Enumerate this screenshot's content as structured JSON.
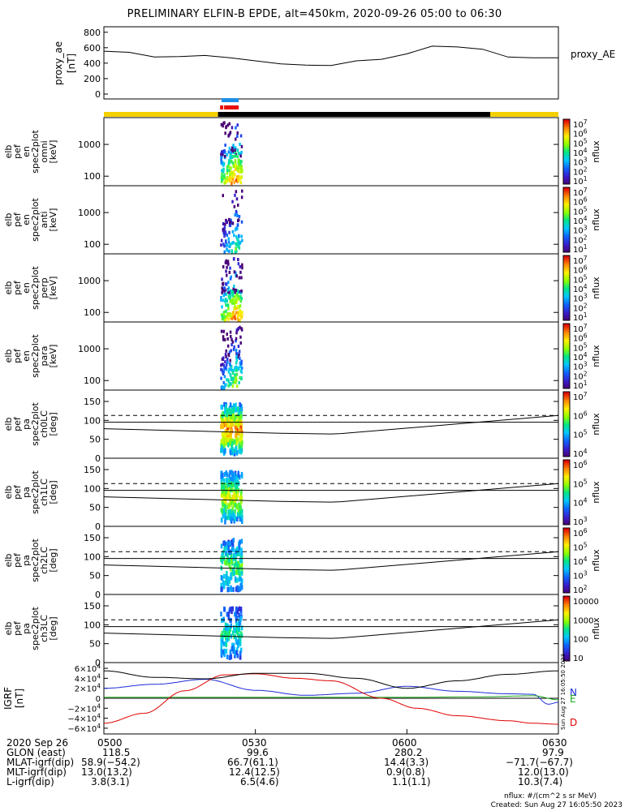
{
  "title": "PRELIMINARY ELFIN-B EPDE, alt=450km, 2020-09-26 05:00 to 06:30",
  "colors": {
    "state_yellow": "#f5d000",
    "state_black": "#000000",
    "bar_blue": "#1e8fe6",
    "bar_red": "#e8100a",
    "comp_N": "#1a2bd6",
    "comp_E": "#1aaa1a",
    "comp_D": "#e00000"
  },
  "chart_data": [
    {
      "type": "line",
      "id": "proxy_ae",
      "ylabel": "proxy_ae\n[nT]",
      "legend": "proxy_AE",
      "yticks": [
        "800",
        "600",
        "400",
        "200",
        "0"
      ],
      "ylim": [
        0,
        850
      ],
      "xlim": [
        0,
        90
      ],
      "x": [
        0,
        5,
        10,
        15,
        20,
        25,
        30,
        35,
        40,
        45,
        50,
        55,
        60,
        65,
        70,
        75,
        80,
        85,
        90
      ],
      "y": [
        555,
        540,
        480,
        485,
        500,
        470,
        430,
        390,
        375,
        370,
        430,
        450,
        520,
        620,
        610,
        580,
        480,
        470,
        470
      ]
    },
    {
      "type": "heatmap",
      "id": "en_omni",
      "ylabel": [
        "elb",
        "pef",
        "en",
        "spec2plot",
        "omni",
        "[keV]"
      ],
      "yticks": [
        "1000",
        "100"
      ],
      "ylim_log": [
        50,
        7000
      ],
      "colorbar": {
        "label": "nflux",
        "ticks": [
          "10^7",
          "10^6",
          "10^5",
          "10^4",
          "10^3",
          "10^2",
          "10^1"
        ]
      },
      "intensity": 1.0
    },
    {
      "type": "heatmap",
      "id": "en_anti",
      "ylabel": [
        "elb",
        "pef",
        "en",
        "spec2plot",
        "anti",
        "[keV]"
      ],
      "yticks": [
        "1000",
        "100"
      ],
      "ylim_log": [
        50,
        7000
      ],
      "colorbar": {
        "label": "nflux",
        "ticks": [
          "10^7",
          "10^6",
          "10^5",
          "10^4",
          "10^3",
          "10^2",
          "10^1"
        ]
      },
      "intensity": 0.55
    },
    {
      "type": "heatmap",
      "id": "en_perp",
      "ylabel": [
        "elb",
        "pef",
        "en",
        "spec2plot",
        "perp",
        "[keV]"
      ],
      "yticks": [
        "1000",
        "100"
      ],
      "ylim_log": [
        50,
        7000
      ],
      "colorbar": {
        "label": "nflux",
        "ticks": [
          "10^7",
          "10^6",
          "10^5",
          "10^4",
          "10^3",
          "10^2",
          "10^1"
        ]
      },
      "intensity": 1.0
    },
    {
      "type": "heatmap",
      "id": "en_para",
      "ylabel": [
        "elb",
        "pef",
        "en",
        "spec2plot",
        "para",
        "[keV]"
      ],
      "yticks": [
        "1000",
        "100"
      ],
      "ylim_log": [
        50,
        7000
      ],
      "colorbar": {
        "label": "nflux",
        "ticks": [
          "10^7",
          "10^6",
          "10^5",
          "10^4",
          "10^3",
          "10^2",
          "10^1"
        ]
      },
      "intensity": 0.7
    },
    {
      "type": "heatmap",
      "id": "pa_ch0",
      "ylabel": [
        "elb",
        "pef",
        "pa",
        "spec2plot",
        "ch0LC",
        "[deg]"
      ],
      "yticks": [
        "150",
        "100",
        "50",
        "0"
      ],
      "ylim": [
        0,
        180
      ],
      "colorbar": {
        "label": "nflux",
        "ticks": [
          "10^7",
          "10^6",
          "10^5",
          "10^4"
        ]
      },
      "intensity": 1.0
    },
    {
      "type": "heatmap",
      "id": "pa_ch1",
      "ylabel": [
        "elb",
        "pef",
        "pa",
        "spec2plot",
        "ch1LC",
        "[deg]"
      ],
      "yticks": [
        "150",
        "100",
        "50",
        "0"
      ],
      "ylim": [
        0,
        180
      ],
      "colorbar": {
        "label": "nflux",
        "ticks": [
          "10^6",
          "10^5",
          "10^4",
          "10^3"
        ]
      },
      "intensity": 0.8
    },
    {
      "type": "heatmap",
      "id": "pa_ch2",
      "ylabel": [
        "elb",
        "pef",
        "pa",
        "spec2plot",
        "ch2LC",
        "[deg]"
      ],
      "yticks": [
        "150",
        "100",
        "50",
        "0"
      ],
      "ylim": [
        0,
        180
      ],
      "colorbar": {
        "label": "nflux",
        "ticks": [
          "10^6",
          "10^5",
          "10^4",
          "10^3",
          "10^2"
        ]
      },
      "intensity": 0.6
    },
    {
      "type": "heatmap",
      "id": "pa_ch3",
      "ylabel": [
        "elb",
        "pef",
        "pa",
        "spec2plot",
        "ch3LC",
        "[deg]"
      ],
      "yticks": [
        "150",
        "100",
        "50",
        "0"
      ],
      "ylim": [
        0,
        180
      ],
      "colorbar": {
        "label": "nflux",
        "ticks": [
          "10000",
          "1000",
          "100",
          "10"
        ]
      },
      "intensity": 0.5
    },
    {
      "type": "line",
      "id": "igrf",
      "ylabel": "IGRF\n[nT]",
      "yticks": [
        "6×10^4",
        "4×10^4",
        "2×10^4",
        "0",
        "−2×10^4",
        "−4×10^4",
        "−6×10^4"
      ],
      "ylim": [
        -65000,
        65000
      ],
      "xlim": [
        0,
        90
      ],
      "series": [
        {
          "name": "N",
          "x": [
            0,
            10,
            20,
            30,
            40,
            50,
            60,
            70,
            80,
            85,
            88,
            90
          ],
          "y": [
            20000,
            28000,
            38000,
            16000,
            6000,
            10000,
            24000,
            14000,
            9000,
            8000,
            -12000,
            -8000
          ]
        },
        {
          "name": "E",
          "x": [
            0,
            20,
            40,
            60,
            75,
            85,
            90
          ],
          "y": [
            2000,
            2000,
            2000,
            2000,
            3000,
            5000,
            -3000
          ]
        },
        {
          "name": "D",
          "x": [
            0,
            8,
            16,
            24,
            30,
            38,
            45,
            55,
            62,
            70,
            80,
            85,
            90
          ],
          "y": [
            -50000,
            -30000,
            15000,
            47000,
            49000,
            40000,
            35000,
            0,
            -20000,
            -35000,
            -45000,
            -50000,
            -52000
          ]
        },
        {
          "name": "",
          "x": [
            0,
            10,
            20,
            30,
            40,
            50,
            60,
            70,
            80,
            90
          ],
          "y": [
            55000,
            42000,
            39000,
            50000,
            50000,
            40000,
            20000,
            35000,
            48000,
            55000
          ]
        }
      ]
    }
  ],
  "mid_labels": {
    "annotation": "Sun Aug 27 16:05:50 2023"
  },
  "footer": {
    "rows": [
      {
        "label": "2020 Sep 26",
        "vals": [
          "0500",
          "0530",
          "0600",
          "0630"
        ]
      },
      {
        "label": "GLON (east)",
        "vals": [
          "118.5",
          "99.6",
          "280.2",
          "97.9"
        ]
      },
      {
        "label": "MLAT-igrf(dip)",
        "vals": [
          "58.9(−54.2)",
          "66.7(61.1)",
          "14.4(3.3)",
          "−71.7(−67.7)"
        ]
      },
      {
        "label": "MLT-igrf(dip)",
        "vals": [
          "13.0(13.2)",
          "12.4(12.5)",
          "0.9(0.8)",
          "12.0(13.0)"
        ]
      },
      {
        "label": "L-igrf(dip)",
        "vals": [
          "3.8(3.1)",
          "6.5(4.6)",
          "1.1(1.1)",
          "10.3(7.4)"
        ]
      }
    ],
    "units": "nflux: #/(cm^2 s sr MeV)",
    "created": "Created: Sun Aug 27 16:05:50 2023"
  }
}
